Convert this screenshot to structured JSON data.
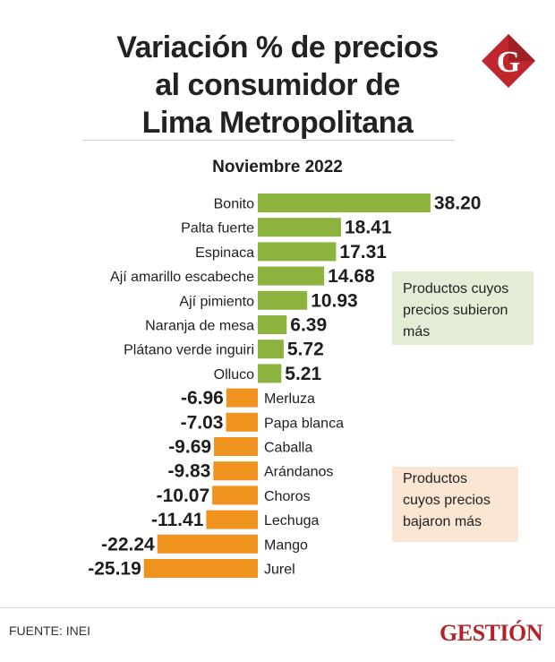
{
  "title_lines": [
    "Variación %  de precios",
    "al consumidor de",
    "Lima Metropolitana"
  ],
  "subtitle": "Noviembre 2022",
  "logo_letter": "G",
  "notes": {
    "up": [
      "Productos cuyos",
      "precios subieron",
      "más"
    ],
    "down": [
      "Productos",
      "cuyos precios",
      "bajaron más"
    ]
  },
  "source": "FUENTE: INEI",
  "brand": "GESTIÓN",
  "colors": {
    "positive": "#8db33f",
    "negative": "#f0921e",
    "brand": "#b3232a",
    "note_up_bg": "#e3edd6",
    "note_down_bg": "#fbe6d3"
  },
  "chart_data": {
    "type": "bar",
    "orientation": "horizontal",
    "categories": [
      "Bonito",
      "Palta fuerte",
      "Espinaca",
      "Ají amarillo escabeche",
      "Ají pimiento",
      "Naranja de mesa",
      "Plátano verde inguiri",
      "Olluco",
      "Merluza",
      "Papa blanca",
      "Caballa",
      "Arándanos",
      "Choros",
      "Lechuga",
      "Mango",
      "Jurel"
    ],
    "values": [
      38.2,
      18.41,
      17.31,
      14.68,
      10.93,
      6.39,
      5.72,
      5.21,
      -6.96,
      -7.03,
      -9.69,
      -9.83,
      -10.07,
      -11.41,
      -22.24,
      -25.19
    ],
    "value_labels": [
      "38.20",
      "18.41",
      "17.31",
      "14.68",
      "10.93",
      "6.39",
      "5.72",
      "5.21",
      "-6.96",
      "-7.03",
      "-9.69",
      "-9.83",
      "-10.07",
      "-11.41",
      "-22.24",
      "-25.19"
    ],
    "title": "Variación %  de precios al consumidor de Lima Metropolitana",
    "subtitle": "Noviembre 2022",
    "xlabel": "",
    "ylabel": "",
    "grid": false
  }
}
